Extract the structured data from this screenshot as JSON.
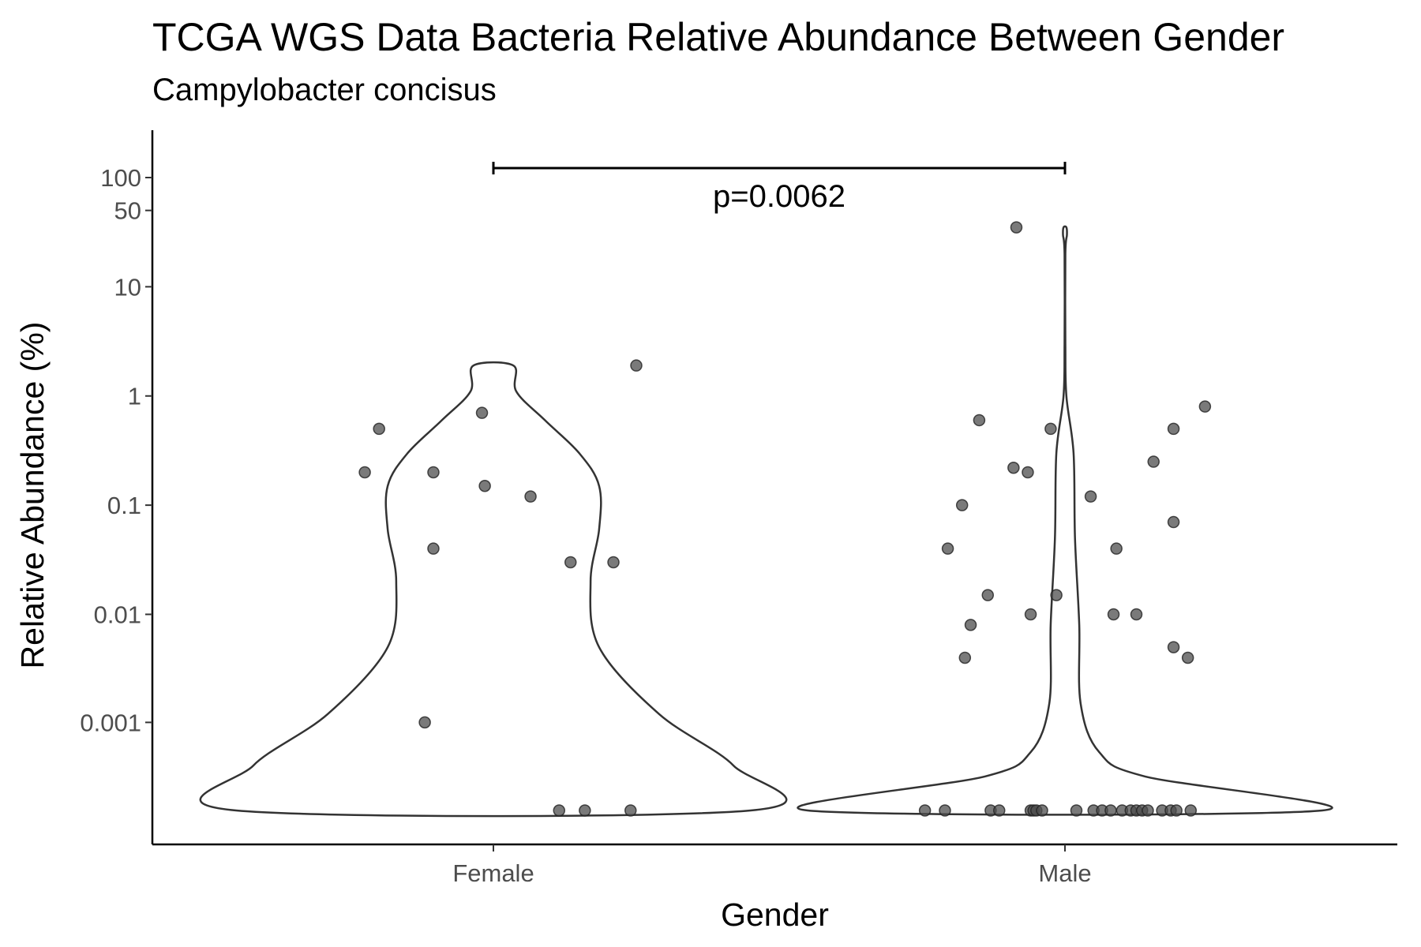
{
  "chart_data": {
    "type": "violin",
    "title": "TCGA WGS Data Bacteria Relative Abundance Between Gender",
    "subtitle": "Campylobacter concisus",
    "xlabel": "Gender",
    "ylabel": "Relative Abundance (%)",
    "y_scale": "pseudo-log",
    "y_ticks": [
      {
        "value": 0.001,
        "label": "0.001"
      },
      {
        "value": 0.01,
        "label": "0.01"
      },
      {
        "value": 0.1,
        "label": "0.1"
      },
      {
        "value": 1,
        "label": "1"
      },
      {
        "value": 10,
        "label": "10"
      },
      {
        "value": 50,
        "label": "50"
      },
      {
        "value": 100,
        "label": "100"
      }
    ],
    "categories": [
      "Female",
      "Male"
    ],
    "annotation": {
      "text": "p=0.0062",
      "from": "Female",
      "to": "Male"
    },
    "points": {
      "Female": [
        {
          "jitter": -0.45,
          "y": 0.2
        },
        {
          "jitter": -0.4,
          "y": 0.5
        },
        {
          "jitter": -0.21,
          "y": 0.2
        },
        {
          "jitter": -0.21,
          "y": 0.04
        },
        {
          "jitter": -0.24,
          "y": 0.001
        },
        {
          "jitter": -0.04,
          "y": 0.7
        },
        {
          "jitter": -0.03,
          "y": 0.15
        },
        {
          "jitter": 0.13,
          "y": 0.12
        },
        {
          "jitter": 0.27,
          "y": 0.03
        },
        {
          "jitter": 0.42,
          "y": 0.03
        },
        {
          "jitter": 0.5,
          "y": 1.9
        },
        {
          "jitter": 0.23,
          "y": 0
        },
        {
          "jitter": 0.32,
          "y": 0
        },
        {
          "jitter": 0.48,
          "y": 0
        }
      ],
      "Male": [
        {
          "jitter": -0.17,
          "y": 35
        },
        {
          "jitter": -0.3,
          "y": 0.6
        },
        {
          "jitter": -0.18,
          "y": 0.22
        },
        {
          "jitter": -0.13,
          "y": 0.2
        },
        {
          "jitter": -0.05,
          "y": 0.5
        },
        {
          "jitter": -0.36,
          "y": 0.1
        },
        {
          "jitter": -0.41,
          "y": 0.04
        },
        {
          "jitter": -0.27,
          "y": 0.015
        },
        {
          "jitter": -0.33,
          "y": 0.008
        },
        {
          "jitter": -0.35,
          "y": 0.004
        },
        {
          "jitter": -0.12,
          "y": 0.01
        },
        {
          "jitter": -0.03,
          "y": 0.015
        },
        {
          "jitter": 0.09,
          "y": 0.12
        },
        {
          "jitter": 0.18,
          "y": 0.04
        },
        {
          "jitter": 0.17,
          "y": 0.01
        },
        {
          "jitter": 0.25,
          "y": 0.01
        },
        {
          "jitter": 0.31,
          "y": 0.25
        },
        {
          "jitter": 0.38,
          "y": 0.5
        },
        {
          "jitter": 0.38,
          "y": 0.07
        },
        {
          "jitter": 0.49,
          "y": 0.8
        },
        {
          "jitter": 0.38,
          "y": 0.005
        },
        {
          "jitter": 0.43,
          "y": 0.004
        },
        {
          "jitter": -0.49,
          "y": 0
        },
        {
          "jitter": -0.42,
          "y": 0
        },
        {
          "jitter": -0.26,
          "y": 0
        },
        {
          "jitter": -0.23,
          "y": 0
        },
        {
          "jitter": -0.12,
          "y": 0
        },
        {
          "jitter": -0.11,
          "y": 0
        },
        {
          "jitter": -0.1,
          "y": 0
        },
        {
          "jitter": -0.08,
          "y": 0
        },
        {
          "jitter": 0.04,
          "y": 0
        },
        {
          "jitter": 0.1,
          "y": 0
        },
        {
          "jitter": 0.13,
          "y": 0
        },
        {
          "jitter": 0.16,
          "y": 0
        },
        {
          "jitter": 0.2,
          "y": 0
        },
        {
          "jitter": 0.23,
          "y": 0
        },
        {
          "jitter": 0.25,
          "y": 0
        },
        {
          "jitter": 0.27,
          "y": 0
        },
        {
          "jitter": 0.29,
          "y": 0
        },
        {
          "jitter": 0.34,
          "y": 0
        },
        {
          "jitter": 0.37,
          "y": 0
        },
        {
          "jitter": 0.39,
          "y": 0
        },
        {
          "jitter": 0.44,
          "y": 0
        }
      ]
    },
    "violins": {
      "Female": [
        {
          "y": 0,
          "w": 0.9
        },
        {
          "y": 0.00035,
          "w": 0.84
        },
        {
          "y": 0.0012,
          "w": 0.58
        },
        {
          "y": 0.005,
          "w": 0.37
        },
        {
          "y": 0.02,
          "w": 0.34
        },
        {
          "y": 0.06,
          "w": 0.37
        },
        {
          "y": 0.15,
          "w": 0.37
        },
        {
          "y": 0.3,
          "w": 0.3
        },
        {
          "y": 0.6,
          "w": 0.18
        },
        {
          "y": 1.1,
          "w": 0.08
        },
        {
          "y": 1.9,
          "w": 0.07
        }
      ],
      "Male": [
        {
          "y": 0,
          "w": 0.9
        },
        {
          "y": 0.00025,
          "w": 0.28
        },
        {
          "y": 0.0005,
          "w": 0.12
        },
        {
          "y": 0.0015,
          "w": 0.055
        },
        {
          "y": 0.008,
          "w": 0.05
        },
        {
          "y": 0.05,
          "w": 0.035
        },
        {
          "y": 0.3,
          "w": 0.03
        },
        {
          "y": 1,
          "w": 0.005
        },
        {
          "y": 3,
          "w": 0.0015
        },
        {
          "y": 20,
          "w": 0.0015
        },
        {
          "y": 30,
          "w": 0.007
        },
        {
          "y": 35,
          "w": 0.005
        }
      ]
    },
    "colors": {
      "point": "#4d4d4d",
      "outline": "#333333",
      "axis": "#000000"
    }
  }
}
